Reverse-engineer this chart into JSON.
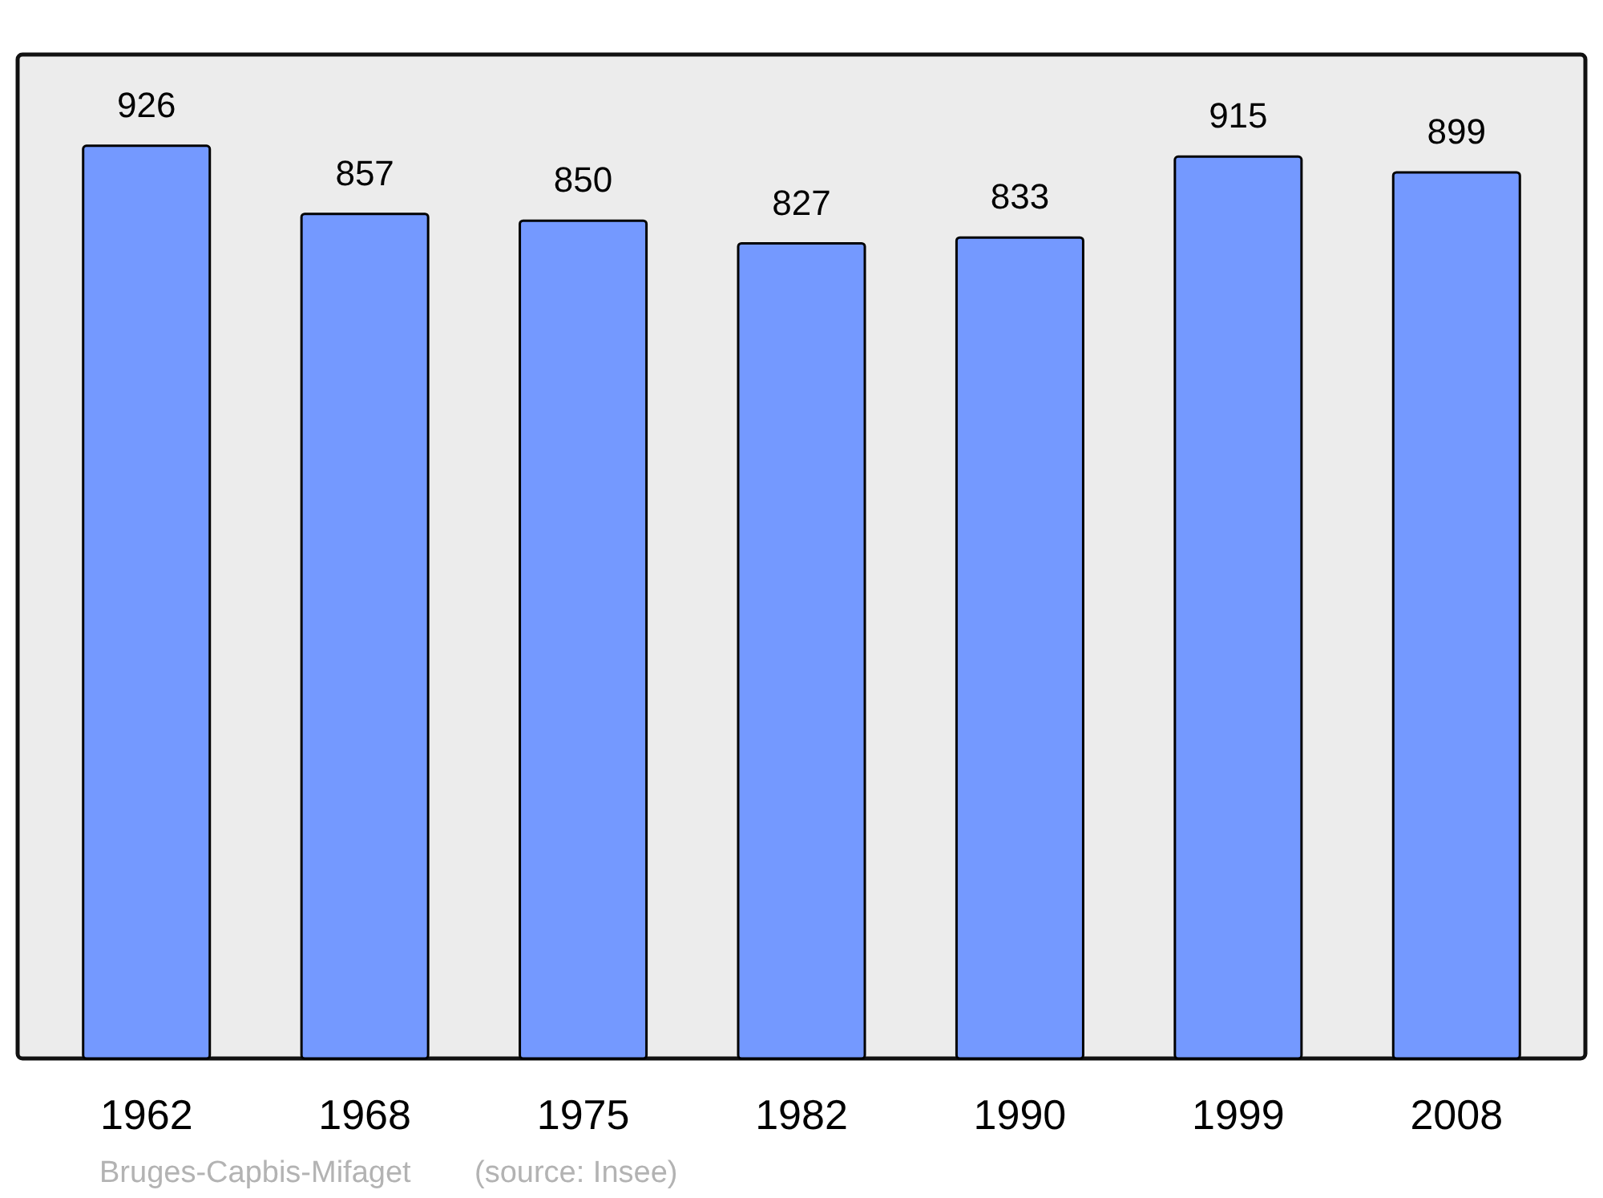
{
  "chart_data": {
    "type": "bar",
    "categories": [
      "1962",
      "1968",
      "1975",
      "1982",
      "1990",
      "1999",
      "2008"
    ],
    "values": [
      926,
      857,
      850,
      827,
      833,
      915,
      899
    ],
    "color": "#7499ff",
    "data_labels": true,
    "annotations": [
      "Bruges-Capbis-Mifaget",
      "(source: Insee)"
    ]
  }
}
